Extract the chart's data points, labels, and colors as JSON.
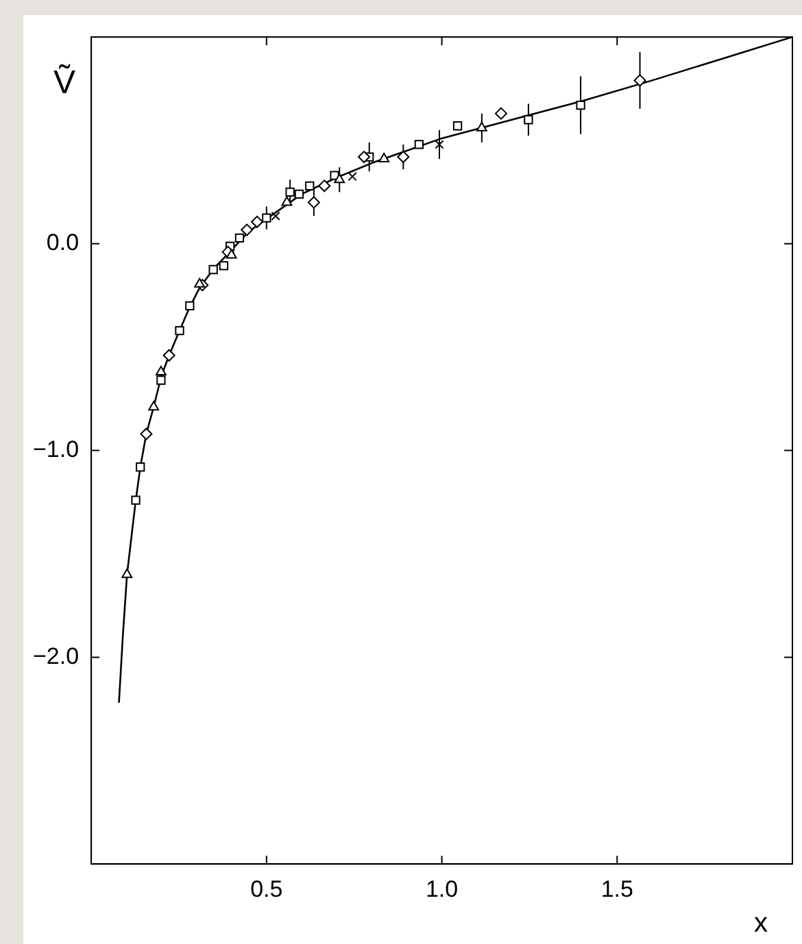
{
  "chart_data": {
    "type": "scatter",
    "xlabel": "x",
    "ylabel": "Ṽ",
    "xlim": [
      0,
      2
    ],
    "ylim": [
      -3,
      1
    ],
    "xticks": [
      {
        "value": 0.5,
        "label": "0.5"
      },
      {
        "value": 1,
        "label": "1.0"
      },
      {
        "value": 1.5,
        "label": "1.5"
      }
    ],
    "yticks": [
      {
        "value": -2,
        "label": "−2.0"
      },
      {
        "value": -1,
        "label": "−1.0"
      },
      {
        "value": 0,
        "label": "0.0"
      }
    ],
    "grid": false,
    "legend": false,
    "series": [
      {
        "type": "line",
        "color": "#000000",
        "marker": "none",
        "line_style": "solid",
        "x": [
          0.079,
          0.09,
          0.102,
          0.127,
          0.14,
          0.157,
          0.178,
          0.2,
          0.222,
          0.252,
          0.28,
          0.31,
          0.35,
          0.4,
          0.45,
          0.5,
          0.6,
          0.7,
          0.8,
          0.9,
          1.0,
          1.2,
          1.4,
          1.6,
          1.8,
          2.0
        ],
        "values": [
          -2.22,
          -1.9,
          -1.6,
          -1.24,
          -1.08,
          -0.92,
          -0.79,
          -0.64,
          -0.54,
          -0.42,
          -0.31,
          -0.21,
          -0.12,
          -0.03,
          0.06,
          0.12,
          0.24,
          0.32,
          0.39,
          0.45,
          0.51,
          0.6,
          0.69,
          0.79,
          0.895,
          1.0
        ]
      },
      {
        "type": "scatter",
        "color": "#000000",
        "marker": "square",
        "x": [
          1.396,
          1.247,
          1.045,
          0.935,
          0.793,
          0.694,
          0.623,
          0.593,
          0.567,
          0.5,
          0.423,
          0.396,
          0.378,
          0.348,
          0.281,
          0.252,
          0.199,
          0.14,
          0.127
        ],
        "values": [
          0.67,
          0.6,
          0.57,
          0.48,
          0.42,
          0.33,
          0.28,
          0.24,
          0.25,
          0.125,
          0.028,
          -0.012,
          -0.106,
          -0.125,
          -0.3,
          -0.42,
          -0.66,
          -1.08,
          -1.24
        ],
        "errors": [
          0.14,
          0.077,
          null,
          null,
          0.07,
          null,
          null,
          null,
          0.06,
          0.055,
          null,
          null,
          null,
          null,
          null,
          null,
          null,
          null,
          null
        ]
      },
      {
        "type": "scatter",
        "color": "#000000",
        "marker": "diamond",
        "x": [
          1.565,
          1.169,
          0.89,
          0.778,
          0.665,
          0.635,
          0.473,
          0.444,
          0.39,
          0.317,
          0.222,
          0.157
        ],
        "values": [
          0.79,
          0.63,
          0.42,
          0.42,
          0.28,
          0.2,
          0.106,
          0.067,
          -0.04,
          -0.2,
          -0.54,
          -0.92
        ],
        "errors": [
          0.137,
          null,
          0.06,
          null,
          null,
          0.065,
          null,
          null,
          null,
          null,
          null,
          null
        ]
      },
      {
        "type": "scatter",
        "color": "#000000",
        "marker": "triangle",
        "x": [
          1.114,
          0.835,
          0.708,
          0.558,
          0.4,
          0.309,
          0.199,
          0.178,
          0.102
        ],
        "values": [
          0.56,
          0.41,
          0.31,
          0.2,
          -0.055,
          -0.195,
          -0.62,
          -0.79,
          -1.6
        ],
        "errors": [
          0.07,
          null,
          0.06,
          null,
          null,
          null,
          null,
          null,
          null
        ]
      },
      {
        "type": "scatter",
        "color": "#000000",
        "marker": "cross",
        "x": [
          0.993,
          0.745,
          0.526
        ],
        "values": [
          0.48,
          0.325,
          0.134
        ],
        "errors": [
          0.07,
          null,
          null
        ]
      }
    ]
  }
}
